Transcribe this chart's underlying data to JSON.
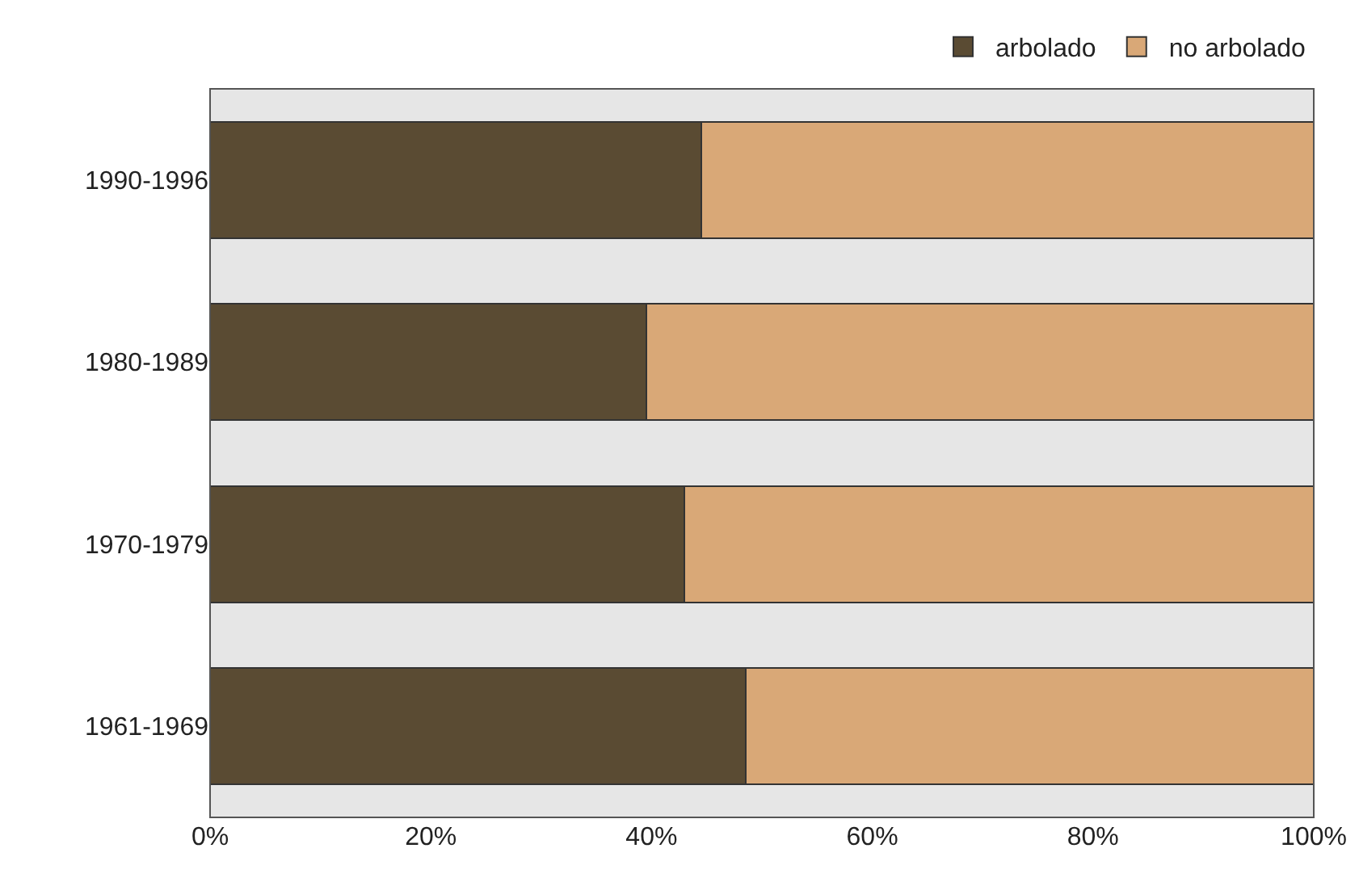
{
  "chart_data": {
    "type": "bar",
    "orientation": "horizontal",
    "stacked": true,
    "categories": [
      "1990-1996",
      "1980-1989",
      "1970-1979",
      "1961-1969"
    ],
    "series": [
      {
        "name": "arbolado",
        "color": "#5a4b33",
        "values": [
          44.5,
          39.5,
          43,
          48.5
        ]
      },
      {
        "name": "no arbolado",
        "color": "#d9a877",
        "values": [
          55.5,
          60.5,
          57,
          51.5
        ]
      }
    ],
    "xlim": [
      0,
      100
    ],
    "xticks": [
      {
        "value": 0,
        "label": "0%"
      },
      {
        "value": 20,
        "label": "20%"
      },
      {
        "value": 40,
        "label": "40%"
      },
      {
        "value": 60,
        "label": "60%"
      },
      {
        "value": 80,
        "label": "80%"
      },
      {
        "value": 100,
        "label": "100%"
      }
    ],
    "grid": false,
    "legend": "top right"
  }
}
